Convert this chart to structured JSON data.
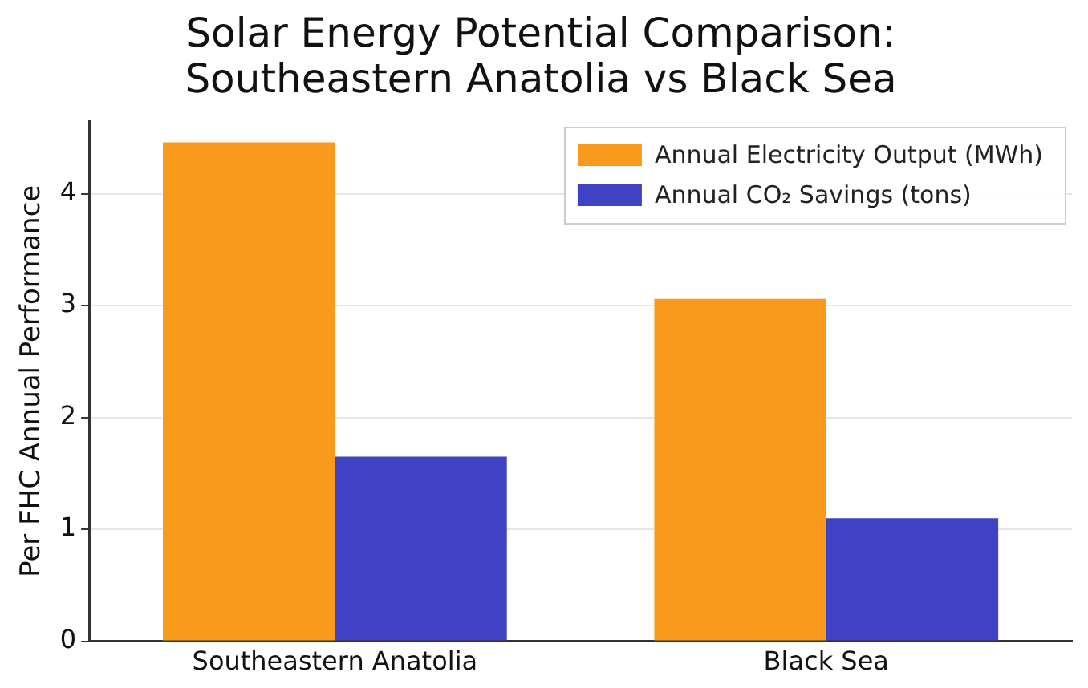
{
  "chart_data": {
    "type": "bar",
    "title": "Solar Energy Potential Comparison:\nSoutheastern Anatolia vs Black Sea",
    "ylabel": "Per FHC Annual Performance",
    "categories": [
      "Southeastern Anatolia",
      "Black Sea"
    ],
    "series": [
      {
        "name": "Annual Electricity Output (MWh)",
        "color": "#fa9a1c",
        "values": [
          4.46,
          3.06
        ]
      },
      {
        "name": "Annual CO₂ Savings (tons)",
        "color": "#4042c4",
        "values": [
          1.65,
          1.1
        ]
      }
    ],
    "ylim": [
      0,
      4.65
    ],
    "yticks": [
      0,
      1,
      2,
      3,
      4
    ],
    "grid": "y",
    "legend": "top right"
  }
}
